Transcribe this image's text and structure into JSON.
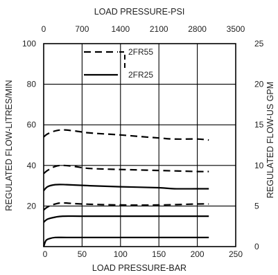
{
  "chart_data": {
    "type": "line",
    "title": "",
    "axes": {
      "x_bottom": {
        "label": "LOAD PRESSURE-BAR",
        "range": [
          0,
          250
        ],
        "ticks": [
          "0",
          "50",
          "100",
          "150",
          "200",
          "250"
        ]
      },
      "x_top": {
        "label": "LOAD PRESSURE-PSI",
        "range": [
          0,
          3500
        ],
        "ticks": [
          "0",
          "700",
          "1400",
          "2100",
          "2800",
          "3500"
        ]
      },
      "y_left": {
        "label": "REGULATED FLOW-LITRES/MIN",
        "range": [
          0,
          100
        ],
        "ticks": [
          "20",
          "40",
          "60",
          "80",
          "100"
        ]
      },
      "y_right": {
        "label": "REGULATED FLOW-US GPM",
        "range": [
          0,
          25
        ],
        "ticks": [
          "0",
          "5",
          "10",
          "15",
          "20",
          "25"
        ]
      }
    },
    "grid": true,
    "legend": {
      "placement": "top-center",
      "entries": [
        {
          "label": "2FR55",
          "style": "dashed"
        },
        {
          "label": "2FR25",
          "style": "solid"
        }
      ]
    },
    "series": [
      {
        "model": "2FR55",
        "style": "dashed",
        "x": [
          0,
          5,
          15,
          25,
          40,
          60,
          100,
          150,
          170,
          200,
          215
        ],
        "y": [
          54,
          55.5,
          57,
          57.5,
          57,
          56,
          55,
          53.5,
          53,
          53,
          52.5
        ]
      },
      {
        "model": "2FR55",
        "style": "dashed",
        "x": [
          0,
          5,
          15,
          25,
          40,
          60,
          100,
          150,
          200,
          215
        ],
        "y": [
          36,
          37.5,
          39.5,
          40,
          39.5,
          38.5,
          38,
          37.5,
          37,
          37
        ]
      },
      {
        "model": "2FR55",
        "style": "dashed",
        "x": [
          0,
          5,
          15,
          25,
          50,
          100,
          150,
          200,
          215
        ],
        "y": [
          18,
          19.5,
          21,
          21.5,
          21,
          20.5,
          20.5,
          21,
          21
        ]
      },
      {
        "model": "2FR25",
        "style": "solid",
        "x": [
          0,
          5,
          15,
          30,
          60,
          100,
          150,
          170,
          200,
          215
        ],
        "y": [
          27.5,
          29.5,
          30.5,
          30.5,
          30,
          29.5,
          29,
          28.5,
          28.5,
          28.5
        ]
      },
      {
        "model": "2FR25",
        "style": "solid",
        "x": [
          0,
          5,
          15,
          25,
          50,
          100,
          150,
          200,
          215
        ],
        "y": [
          12,
          13.5,
          14.5,
          15,
          15,
          15,
          15,
          15,
          15
        ]
      },
      {
        "model": "2FR25",
        "style": "solid",
        "x": [
          0,
          3,
          8,
          15,
          30,
          60,
          100,
          150,
          200,
          215
        ],
        "y": [
          0,
          3,
          4,
          4.5,
          4.5,
          4.5,
          4.5,
          4.5,
          4.5,
          4.5
        ]
      }
    ]
  }
}
